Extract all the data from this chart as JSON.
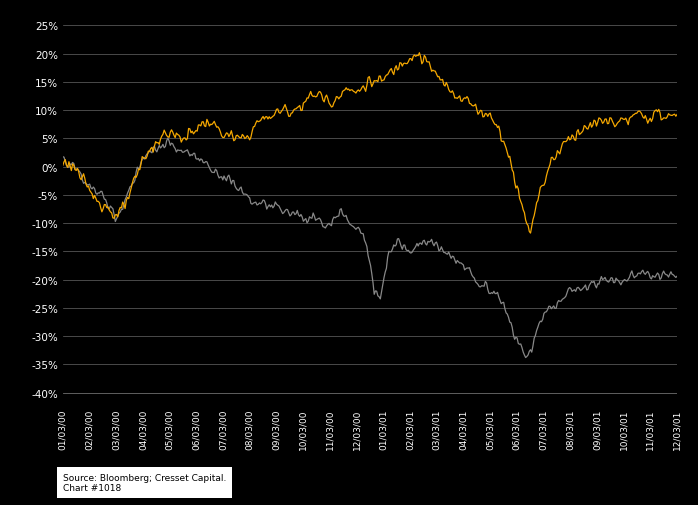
{
  "background_color": "#000000",
  "plot_bg_color": "#000000",
  "grid_color": "#666666",
  "text_color": "#ffffff",
  "line1_color": "#F5A800",
  "line2_color": "#888888",
  "source_text": "Source: Bloomberg; Cresset Capital.\nChart #1018",
  "yticks": [
    -0.4,
    -0.35,
    -0.3,
    -0.25,
    -0.2,
    -0.15,
    -0.1,
    -0.05,
    0.0,
    0.05,
    0.1,
    0.15,
    0.2,
    0.25
  ],
  "ytick_labels": [
    "-40%",
    "-35%",
    "-30%",
    "-25%",
    "-20%",
    "-15%",
    "-10%",
    "-5%",
    "0%",
    "5%",
    "10%",
    "15%",
    "20%",
    "25%"
  ],
  "xtick_labels": [
    "01/03/00",
    "02/03/00",
    "03/03/00",
    "04/03/00",
    "05/03/00",
    "06/03/00",
    "07/03/00",
    "08/03/00",
    "09/03/00",
    "10/03/00",
    "11/03/00",
    "12/03/00",
    "01/03/01",
    "02/03/01",
    "03/03/01",
    "04/03/01",
    "05/03/01",
    "06/03/01",
    "07/03/01",
    "08/03/01",
    "09/03/01",
    "10/03/01",
    "11/03/01",
    "12/03/01"
  ],
  "ylim": [
    -0.42,
    0.27
  ],
  "n_points": 504
}
